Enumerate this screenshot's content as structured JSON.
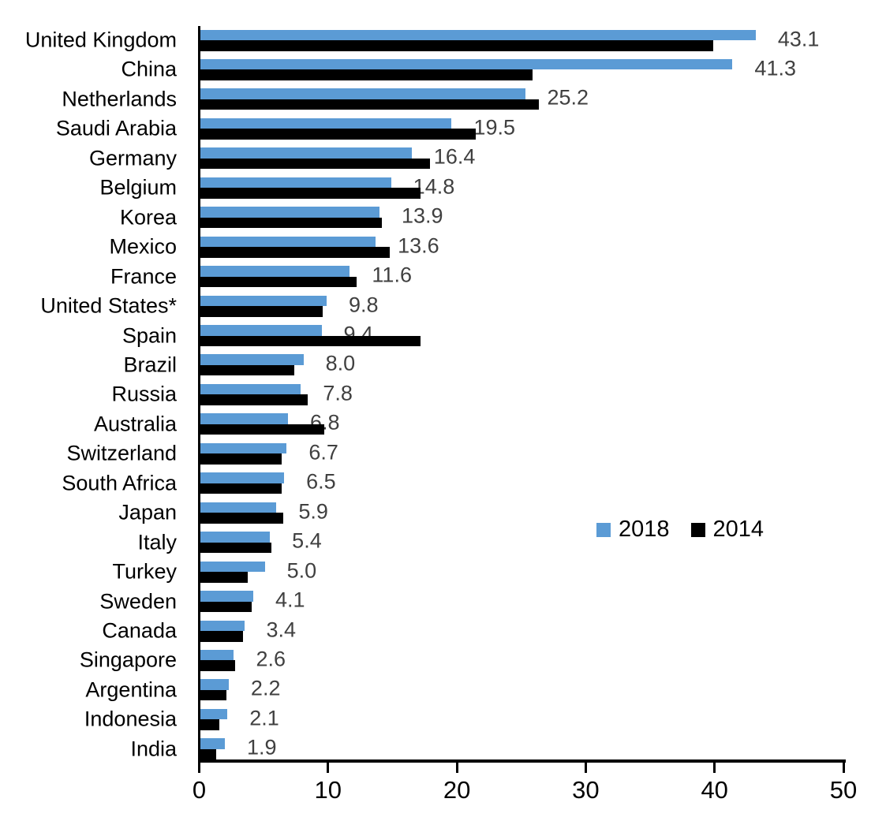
{
  "chart_data": {
    "type": "bar",
    "orientation": "horizontal",
    "title": "",
    "xlabel": "",
    "ylabel": "",
    "xlim": [
      0,
      50
    ],
    "x_ticks": [
      0,
      10,
      20,
      30,
      40,
      50
    ],
    "grid": false,
    "legend_position": "middle-right",
    "categories": [
      "United Kingdom",
      "China",
      "Netherlands",
      "Saudi Arabia",
      "Germany",
      "Belgium",
      "Korea",
      "Mexico",
      "France",
      "United States*",
      "Spain",
      "Brazil",
      "Russia",
      "Australia",
      "Switzerland",
      "South Africa",
      "Japan",
      "Italy",
      "Turkey",
      "Sweden",
      "Canada",
      "Singapore",
      "Argentina",
      "Indonesia",
      "India"
    ],
    "series": [
      {
        "name": "2018",
        "color": "#5B9BD5",
        "values": [
          43.1,
          41.3,
          25.2,
          19.5,
          16.4,
          14.8,
          13.9,
          13.6,
          11.6,
          9.8,
          9.4,
          8.0,
          7.8,
          6.8,
          6.7,
          6.5,
          5.9,
          5.4,
          5.0,
          4.1,
          3.4,
          2.6,
          2.2,
          2.1,
          1.9
        ]
      },
      {
        "name": "2014",
        "color": "#000000",
        "values": [
          39.8,
          25.8,
          26.3,
          21.4,
          17.8,
          17.1,
          14.1,
          14.7,
          12.1,
          9.5,
          17.1,
          7.3,
          8.3,
          9.6,
          6.3,
          6.3,
          6.4,
          5.5,
          3.7,
          4.0,
          3.3,
          2.7,
          2.0,
          1.5,
          1.2
        ]
      }
    ],
    "data_labels": [
      "43.1",
      "41.3",
      "25.2",
      "19.5",
      "16.4",
      "14.8",
      "13.9",
      "13.6",
      "11.6",
      "9.8",
      "9.4",
      "8.0",
      "7.8",
      "6.8",
      "6.7",
      "6.5",
      "5.9",
      "5.4",
      "5.0",
      "4.1",
      "3.4",
      "2.6",
      "2.2",
      "2.1",
      "1.9"
    ],
    "data_label_color": "#404040",
    "axis_color": "#000000"
  }
}
